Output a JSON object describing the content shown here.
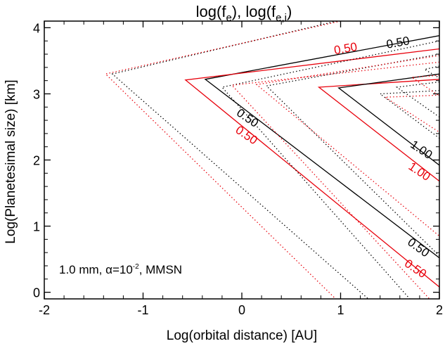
{
  "chart_data": {
    "type": "line",
    "title_parts": {
      "a": "log(f",
      "a_sub": "e",
      "mid": "), log(f",
      "b_sub": "e,i",
      "end": ")"
    },
    "xlabel": "Log(orbital distance) [AU]",
    "ylabel": "Log(Planetesimal size) [km]",
    "xlim": [
      -2,
      2
    ],
    "ylim": [
      -0.1,
      4.1
    ],
    "xticks": [
      "-2",
      "-1",
      "0",
      "1",
      "2"
    ],
    "xtick_values": [
      -2,
      -1,
      0,
      1,
      2
    ],
    "yticks": [
      "0",
      "1",
      "2",
      "3",
      "4"
    ],
    "ytick_values": [
      0,
      1,
      2,
      3,
      4
    ],
    "annotation": {
      "pre": "1.0 mm, ",
      "alpha": "α",
      "mid": "=10",
      "exp": "-2",
      "post": ", MMSN"
    },
    "colors": {
      "black": "#000000",
      "red": "#e8000b"
    },
    "series": [
      {
        "color": "black",
        "style": "dotted",
        "points": [
          [
            0.96,
            4.1
          ],
          [
            -1.31,
            3.3
          ],
          [
            1.28,
            -0.1
          ]
        ]
      },
      {
        "color": "red",
        "style": "dotted",
        "points": [
          [
            1.0,
            4.1
          ],
          [
            -1.38,
            3.3
          ],
          [
            0.95,
            -0.1
          ]
        ]
      },
      {
        "color": "black",
        "style": "solid",
        "points": [
          [
            2.0,
            3.88
          ],
          [
            -0.37,
            3.22
          ],
          [
            2.0,
            0.52
          ]
        ]
      },
      {
        "color": "red",
        "style": "solid",
        "points": [
          [
            2.0,
            3.68
          ],
          [
            -0.57,
            3.21
          ],
          [
            2.0,
            0.08
          ]
        ]
      },
      {
        "color": "black",
        "style": "dotted",
        "points": [
          [
            2.0,
            3.8
          ],
          [
            -0.2,
            3.1
          ],
          [
            1.7,
            -0.1
          ]
        ]
      },
      {
        "color": "red",
        "style": "dotted",
        "points": [
          [
            2.0,
            3.48
          ],
          [
            -0.1,
            3.13
          ],
          [
            1.9,
            -0.1
          ]
        ]
      },
      {
        "color": "black",
        "style": "dotted",
        "points": [
          [
            2.0,
            3.6
          ],
          [
            0.25,
            3.12
          ],
          [
            2.0,
            0.55
          ]
        ]
      },
      {
        "color": "red",
        "style": "dotted",
        "points": [
          [
            2.0,
            3.58
          ],
          [
            0.15,
            3.14
          ],
          [
            2.0,
            0.85
          ]
        ]
      },
      {
        "color": "red",
        "style": "solid",
        "points": [
          [
            2.0,
            3.22
          ],
          [
            0.78,
            3.1
          ],
          [
            2.0,
            1.68
          ]
        ]
      },
      {
        "color": "black",
        "style": "solid",
        "points": [
          [
            2.0,
            3.3
          ],
          [
            0.98,
            3.09
          ],
          [
            2.0,
            1.92
          ]
        ]
      },
      {
        "color": "black",
        "style": "dotted",
        "points": [
          [
            2.0,
            3.05
          ],
          [
            1.4,
            3.0
          ],
          [
            2.0,
            2.33
          ]
        ]
      },
      {
        "color": "red",
        "style": "dotted",
        "points": [
          [
            2.0,
            2.98
          ],
          [
            1.45,
            2.95
          ],
          [
            2.0,
            2.42
          ]
        ]
      },
      {
        "color": "black",
        "style": "dotted",
        "points": [
          [
            2.0,
            3.18
          ],
          [
            1.57,
            3.1
          ],
          [
            2.0,
            2.65
          ]
        ]
      },
      {
        "color": "red",
        "style": "dotted",
        "points": [
          [
            2.0,
            3.28
          ],
          [
            1.72,
            3.25
          ],
          [
            2.0,
            2.97
          ]
        ]
      },
      {
        "color": "black",
        "style": "dotted",
        "points": [
          [
            2.0,
            3.42
          ],
          [
            1.85,
            3.37
          ],
          [
            2.0,
            3.24
          ]
        ]
      }
    ],
    "contour_labels": [
      {
        "text": "0.50",
        "color": "black",
        "x": 1.58,
        "y": 3.78,
        "angle": -10
      },
      {
        "text": "0.50",
        "color": "red",
        "x": 1.05,
        "y": 3.69,
        "angle": -10
      },
      {
        "text": "0.50",
        "color": "black",
        "x": 0.06,
        "y": 2.64,
        "angle": 34
      },
      {
        "text": "0.50",
        "color": "red",
        "x": 0.05,
        "y": 2.38,
        "angle": 34
      },
      {
        "text": "1.00",
        "color": "black",
        "x": 1.82,
        "y": 2.16,
        "angle": 34
      },
      {
        "text": "1.00",
        "color": "red",
        "x": 1.8,
        "y": 1.83,
        "angle": 34
      },
      {
        "text": "0.50",
        "color": "black",
        "x": 1.79,
        "y": 0.68,
        "angle": 36
      },
      {
        "text": "0.50",
        "color": "red",
        "x": 1.76,
        "y": 0.36,
        "angle": 34
      }
    ]
  }
}
